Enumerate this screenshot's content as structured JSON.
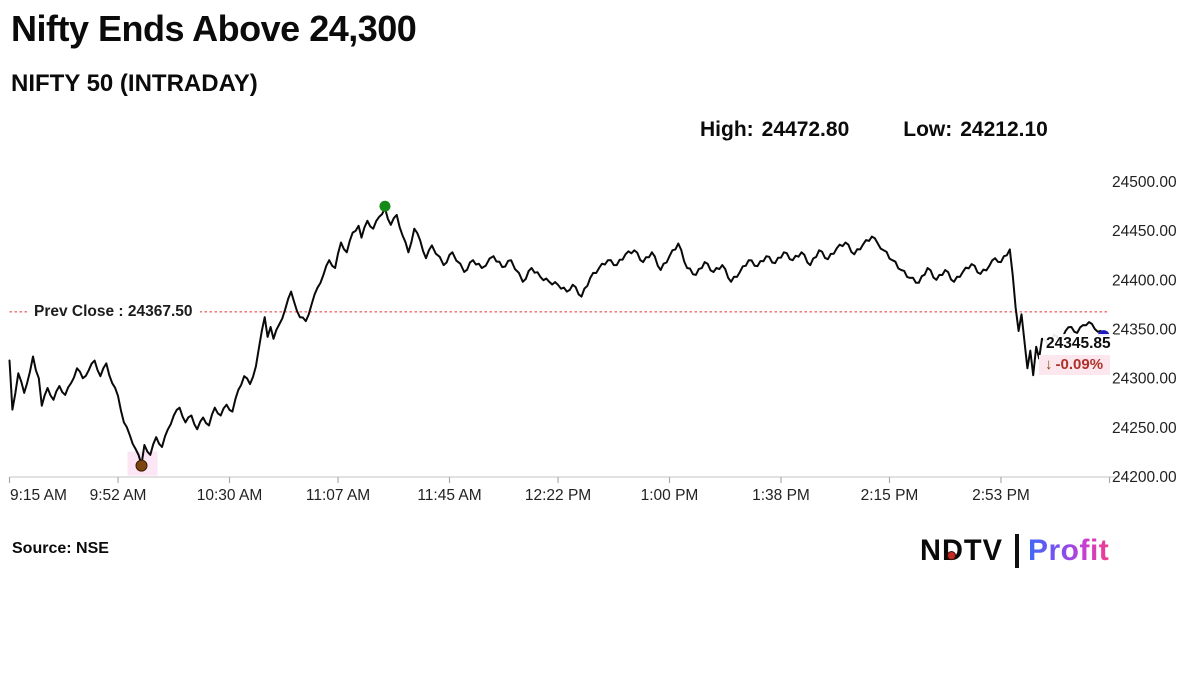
{
  "header": {
    "title": "Nifty Ends Above 24,300",
    "subtitle": "NIFTY 50 (INTRADAY)"
  },
  "stats": {
    "high_label": "High:",
    "high_value": "24472.80",
    "low_label": "Low:",
    "low_value": "24212.10"
  },
  "annotations": {
    "prev_close_label": "Prev Close : 24367.50",
    "last_price": "24345.85",
    "change_arrow": "↓",
    "change_pct": "-0.09%"
  },
  "footer": {
    "source": "Source: NSE"
  },
  "logo": {
    "ndtv": "NDTV",
    "separator_bar": "brand-divider",
    "profit": "Profit"
  },
  "colors": {
    "price_line": "#0a0a0a",
    "prev_close_line": "#f16a6a",
    "high_marker": "#168a16",
    "low_marker": "#7d4511",
    "last_marker": "#1b1bbe",
    "low_highlight": "#fad2ec",
    "axis_line": "#cfcfcf",
    "tick_mark": "#ababab",
    "tick_label": "#222222",
    "pct_text": "#b03028",
    "pct_bg": "#fce7ee"
  },
  "chart_data": {
    "type": "line",
    "title": "NIFTY 50 (INTRADAY)",
    "series_name": "NIFTY 50",
    "x_unit": "minutes since 9:15 AM",
    "ylim": [
      24200,
      24500
    ],
    "y_ticks": [
      24500,
      24450,
      24400,
      24350,
      24300,
      24250,
      24200
    ],
    "x_ticks": [
      {
        "t": 0,
        "label": "9:15 AM"
      },
      {
        "t": 37,
        "label": "9:52 AM"
      },
      {
        "t": 75,
        "label": "10:30 AM"
      },
      {
        "t": 112,
        "label": "11:07 AM"
      },
      {
        "t": 150,
        "label": "11:45 AM"
      },
      {
        "t": 187,
        "label": "12:22 PM"
      },
      {
        "t": 225,
        "label": "1:00 PM"
      },
      {
        "t": 263,
        "label": "1:38 PM"
      },
      {
        "t": 300,
        "label": "2:15 PM"
      },
      {
        "t": 338,
        "label": "2:53 PM"
      },
      {
        "t": 375,
        "label": ""
      }
    ],
    "prev_close": 24367.5,
    "high": 24472.8,
    "low": 24212.1,
    "last": 24345.85,
    "change_pct": -0.09,
    "legend": false,
    "grid": false,
    "markers": {
      "high": {
        "t": 128,
        "price": 24472.8
      },
      "low": {
        "t": 45,
        "price": 24212.1
      },
      "last": {
        "t": 373,
        "price": 24345.85
      }
    },
    "points": [
      [
        0,
        24318
      ],
      [
        1,
        24268
      ],
      [
        2,
        24285
      ],
      [
        3,
        24305
      ],
      [
        5,
        24285
      ],
      [
        6,
        24295
      ],
      [
        8,
        24322
      ],
      [
        9,
        24308
      ],
      [
        10,
        24300
      ],
      [
        11,
        24272
      ],
      [
        13,
        24290
      ],
      [
        15,
        24278
      ],
      [
        17,
        24292
      ],
      [
        19,
        24283
      ],
      [
        21,
        24295
      ],
      [
        23,
        24310
      ],
      [
        25,
        24300
      ],
      [
        27,
        24308
      ],
      [
        29,
        24318
      ],
      [
        31,
        24302
      ],
      [
        33,
        24315
      ],
      [
        35,
        24295
      ],
      [
        37,
        24282
      ],
      [
        39,
        24255
      ],
      [
        41,
        24242
      ],
      [
        43,
        24228
      ],
      [
        45,
        24212.1
      ],
      [
        46,
        24232
      ],
      [
        48,
        24222
      ],
      [
        50,
        24240
      ],
      [
        52,
        24230
      ],
      [
        54,
        24248
      ],
      [
        56,
        24262
      ],
      [
        58,
        24270
      ],
      [
        60,
        24255
      ],
      [
        62,
        24262
      ],
      [
        64,
        24248
      ],
      [
        66,
        24260
      ],
      [
        68,
        24252
      ],
      [
        70,
        24270
      ],
      [
        72,
        24262
      ],
      [
        74,
        24273
      ],
      [
        76,
        24266
      ],
      [
        78,
        24288
      ],
      [
        80,
        24302
      ],
      [
        82,
        24294
      ],
      [
        84,
        24312
      ],
      [
        85,
        24330
      ],
      [
        86,
        24348
      ],
      [
        87,
        24362
      ],
      [
        88,
        24342
      ],
      [
        89,
        24352
      ],
      [
        90,
        24340
      ],
      [
        92,
        24355
      ],
      [
        94,
        24370
      ],
      [
        96,
        24388
      ],
      [
        97,
        24378
      ],
      [
        99,
        24362
      ],
      [
        101,
        24358
      ],
      [
        103,
        24375
      ],
      [
        105,
        24392
      ],
      [
        107,
        24405
      ],
      [
        109,
        24420
      ],
      [
        111,
        24412
      ],
      [
        113,
        24438
      ],
      [
        115,
        24428
      ],
      [
        117,
        24448
      ],
      [
        119,
        24455
      ],
      [
        120,
        24443
      ],
      [
        122,
        24460
      ],
      [
        124,
        24452
      ],
      [
        126,
        24464
      ],
      [
        128,
        24472.8
      ],
      [
        129,
        24462
      ],
      [
        130,
        24456
      ],
      [
        132,
        24466
      ],
      [
        134,
        24445
      ],
      [
        136,
        24428
      ],
      [
        138,
        24452
      ],
      [
        140,
        24440
      ],
      [
        142,
        24422
      ],
      [
        144,
        24435
      ],
      [
        148,
        24415
      ],
      [
        151,
        24428
      ],
      [
        155,
        24408
      ],
      [
        158,
        24420
      ],
      [
        161,
        24412
      ],
      [
        165,
        24424
      ],
      [
        168,
        24413
      ],
      [
        171,
        24420
      ],
      [
        175,
        24398
      ],
      [
        178,
        24412
      ],
      [
        181,
        24403
      ],
      [
        184,
        24398
      ],
      [
        187,
        24395
      ],
      [
        190,
        24388
      ],
      [
        192,
        24395
      ],
      [
        195,
        24383
      ],
      [
        198,
        24402
      ],
      [
        201,
        24412
      ],
      [
        204,
        24420
      ],
      [
        207,
        24415
      ],
      [
        210,
        24426
      ],
      [
        213,
        24430
      ],
      [
        216,
        24418
      ],
      [
        219,
        24428
      ],
      [
        222,
        24410
      ],
      [
        225,
        24424
      ],
      [
        228,
        24437
      ],
      [
        231,
        24412
      ],
      [
        234,
        24405
      ],
      [
        237,
        24418
      ],
      [
        240,
        24408
      ],
      [
        243,
        24415
      ],
      [
        246,
        24398
      ],
      [
        249,
        24408
      ],
      [
        252,
        24420
      ],
      [
        255,
        24414
      ],
      [
        258,
        24424
      ],
      [
        261,
        24417
      ],
      [
        264,
        24428
      ],
      [
        267,
        24420
      ],
      [
        270,
        24428
      ],
      [
        273,
        24415
      ],
      [
        276,
        24430
      ],
      [
        279,
        24421
      ],
      [
        282,
        24432
      ],
      [
        285,
        24438
      ],
      [
        288,
        24426
      ],
      [
        291,
        24436
      ],
      [
        294,
        24444
      ],
      [
        296,
        24437
      ],
      [
        298,
        24430
      ],
      [
        301,
        24420
      ],
      [
        304,
        24410
      ],
      [
        307,
        24402
      ],
      [
        310,
        24397
      ],
      [
        313,
        24412
      ],
      [
        316,
        24400
      ],
      [
        319,
        24410
      ],
      [
        322,
        24398
      ],
      [
        325,
        24408
      ],
      [
        328,
        24416
      ],
      [
        331,
        24406
      ],
      [
        334,
        24414
      ],
      [
        336,
        24422
      ],
      [
        338,
        24418
      ],
      [
        341,
        24431
      ],
      [
        342,
        24405
      ],
      [
        343,
        24372
      ],
      [
        344,
        24348
      ],
      [
        345,
        24365
      ],
      [
        346,
        24338
      ],
      [
        347,
        24310
      ],
      [
        348,
        24328
      ],
      [
        349,
        24303
      ],
      [
        350,
        24332
      ],
      [
        351,
        24320
      ],
      [
        352,
        24340
      ],
      [
        354,
        24334
      ],
      [
        356,
        24344
      ],
      [
        358,
        24338
      ],
      [
        360,
        24348
      ],
      [
        362,
        24352
      ],
      [
        364,
        24346
      ],
      [
        366,
        24354
      ],
      [
        368,
        24357
      ],
      [
        370,
        24350
      ],
      [
        372,
        24348
      ],
      [
        373,
        24345.85
      ]
    ]
  }
}
